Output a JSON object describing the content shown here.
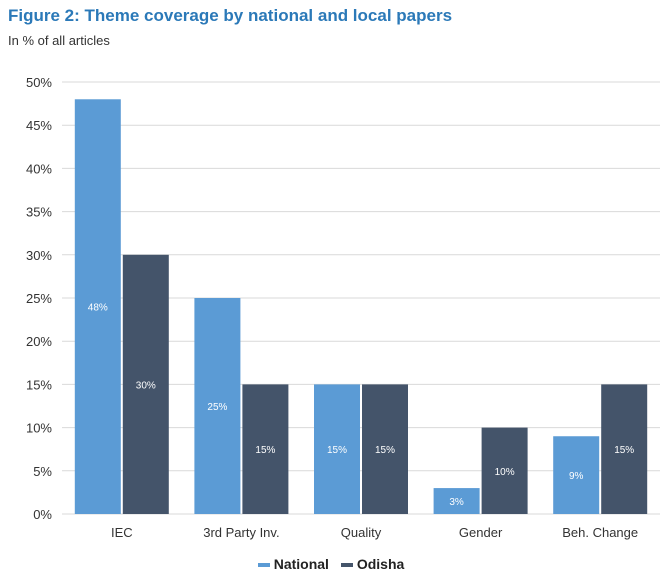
{
  "colors": {
    "national": "#5b9bd5",
    "odisha": "#44546a",
    "grid": "#d9d9d9",
    "axis_text": "#333333"
  },
  "chart_data": {
    "type": "bar",
    "title": "Figure 2: Theme coverage by national and local papers",
    "subtitle": "In % of all articles",
    "categories": [
      "IEC",
      "3rd Party Inv.",
      "Quality",
      "Gender",
      "Beh. Change"
    ],
    "series": [
      {
        "name": "National",
        "values": [
          48,
          25,
          15,
          3,
          9
        ],
        "labels": [
          "48%",
          "25%",
          "15%",
          "3%",
          "9%"
        ]
      },
      {
        "name": "Odisha",
        "values": [
          30,
          15,
          15,
          10,
          15
        ],
        "labels": [
          "30%",
          "15%",
          "15%",
          "10%",
          "15%"
        ]
      }
    ],
    "ylim": [
      0,
      50
    ],
    "yticks": [
      0,
      5,
      10,
      15,
      20,
      25,
      30,
      35,
      40,
      45,
      50
    ],
    "ytick_labels": [
      "0%",
      "5%",
      "10%",
      "15%",
      "20%",
      "25%",
      "30%",
      "35%",
      "40%",
      "45%",
      "50%"
    ],
    "grid": true,
    "legend": "bottom"
  }
}
